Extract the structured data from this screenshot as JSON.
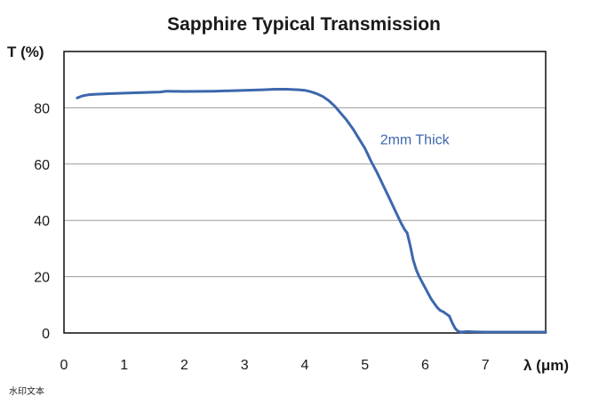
{
  "chart_data": {
    "type": "line",
    "title": "Sapphire Typical Transmission",
    "ylabel": "T (%)",
    "xlabel": "λ (μm)",
    "xlim": [
      0,
      8
    ],
    "ylim": [
      0,
      100
    ],
    "x_ticks": [
      "0",
      "1",
      "2",
      "3",
      "4",
      "5",
      "6",
      "7"
    ],
    "y_ticks": [
      "0",
      "20",
      "40",
      "60",
      "80"
    ],
    "grid": "horizontal",
    "series": [
      {
        "name": "2mm Thick",
        "color": "#3d67ad",
        "x": [
          0.22,
          0.3,
          0.4,
          0.5,
          0.7,
          1.0,
          1.3,
          1.6,
          1.7,
          2.0,
          2.5,
          3.0,
          3.3,
          3.5,
          3.7,
          3.9,
          4.0,
          4.1,
          4.2,
          4.3,
          4.4,
          4.5,
          4.6,
          4.7,
          4.8,
          4.9,
          5.0,
          5.1,
          5.2,
          5.3,
          5.4,
          5.5,
          5.6,
          5.65,
          5.7,
          5.75,
          5.8,
          5.85,
          5.9,
          6.0,
          6.1,
          6.2,
          6.25,
          6.3,
          6.4,
          6.45,
          6.5,
          6.55,
          6.6,
          6.7,
          6.8,
          7.0,
          7.5,
          8.0
        ],
        "values": [
          83.5,
          84.2,
          84.6,
          84.8,
          85.0,
          85.2,
          85.4,
          85.6,
          85.9,
          85.8,
          85.9,
          86.2,
          86.4,
          86.6,
          86.6,
          86.4,
          86.2,
          85.7,
          85.0,
          84.0,
          82.5,
          80.5,
          78.0,
          75.5,
          72.5,
          69.0,
          65.5,
          61.0,
          57.0,
          52.5,
          48.0,
          43.5,
          39.0,
          37.0,
          35.5,
          31.0,
          26.0,
          22.5,
          20.0,
          16.0,
          12.0,
          9.0,
          8.0,
          7.5,
          6.0,
          3.5,
          1.5,
          0.5,
          0.3,
          0.5,
          0.4,
          0.3,
          0.3,
          0.3
        ]
      }
    ],
    "annotation": "2mm Thick"
  },
  "watermark": "水印文本"
}
